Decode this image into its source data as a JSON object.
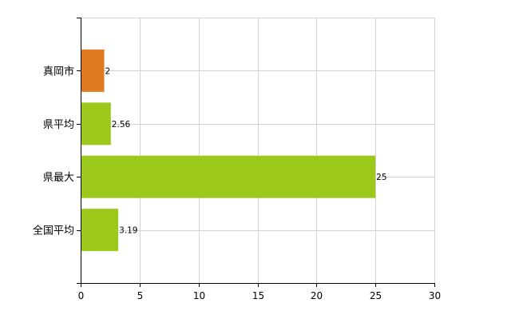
{
  "chart_data": {
    "type": "bar",
    "orientation": "horizontal",
    "categories": [
      "真岡市",
      "県平均",
      "県最大",
      "全国平均"
    ],
    "values": [
      2,
      2.56,
      25,
      3.19
    ],
    "data_labels": [
      "2",
      "2.56",
      "25",
      "3.19"
    ],
    "bar_colors": [
      "#E07B22",
      "#9DC81C",
      "#9DC81C",
      "#9DC81C"
    ],
    "xlim": [
      0,
      30
    ],
    "x_ticks": [
      0,
      5,
      10,
      15,
      20,
      25,
      30
    ],
    "grid": true,
    "legend": "none",
    "title": "",
    "xlabel": "",
    "ylabel": ""
  }
}
